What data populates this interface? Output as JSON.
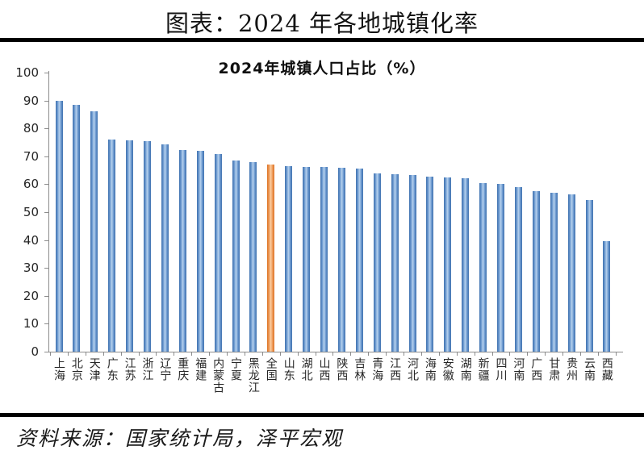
{
  "page": {
    "title": "图表：2024 年各地城镇化率",
    "source": "资料来源：国家统计局，泽平宏观"
  },
  "chart_data": {
    "type": "bar",
    "title": "2024年城镇人口占比（%）",
    "categories": [
      "上海",
      "北京",
      "天津",
      "广东",
      "江苏",
      "浙江",
      "辽宁",
      "重庆",
      "福建",
      "内蒙古",
      "宁夏",
      "黑龙江",
      "全国",
      "山东",
      "湖北",
      "山西",
      "陕西",
      "吉林",
      "青海",
      "江西",
      "河北",
      "海南",
      "安徽",
      "湖南",
      "新疆",
      "四川",
      "河南",
      "广西",
      "甘肃",
      "贵州",
      "云南",
      "西藏"
    ],
    "values": [
      89.8,
      88.4,
      86.1,
      76.0,
      75.6,
      75.4,
      74.3,
      72.3,
      71.9,
      70.8,
      68.4,
      67.8,
      67.0,
      66.5,
      66.2,
      66.1,
      65.8,
      65.5,
      63.9,
      63.6,
      63.3,
      62.7,
      62.5,
      62.2,
      60.5,
      60.2,
      59.1,
      57.4,
      56.8,
      56.5,
      54.2,
      39.6
    ],
    "highlight_category": "全国",
    "highlight_index": 12,
    "bar_color": "#4f81bd",
    "highlight_color": "#e8833a",
    "axis_color": "#8c8c8c",
    "ylim": [
      0,
      100
    ],
    "yticks": [
      0,
      10,
      20,
      30,
      40,
      50,
      60,
      70,
      80,
      90,
      100
    ],
    "grid": false,
    "legend": "none",
    "xlabel": "",
    "ylabel": ""
  }
}
